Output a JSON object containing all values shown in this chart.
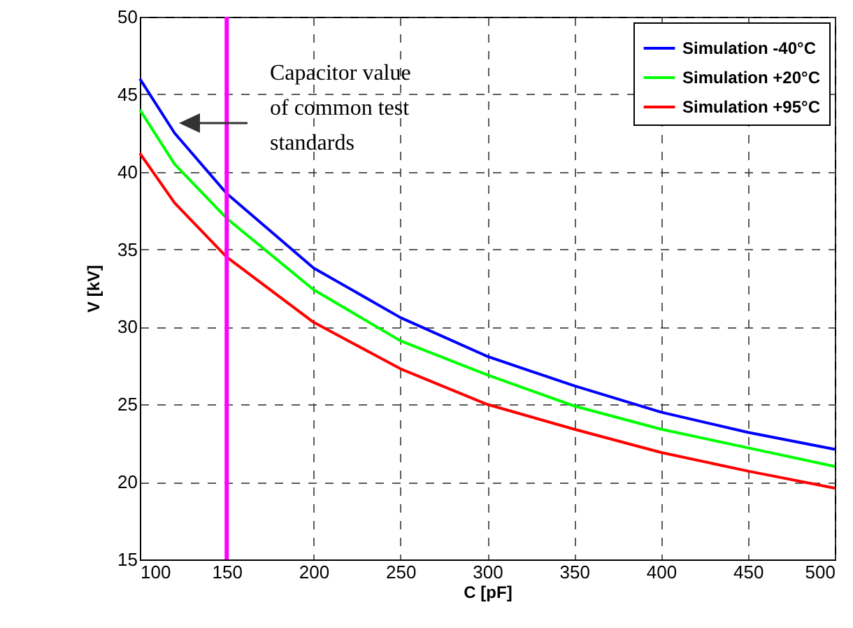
{
  "chart_data": {
    "type": "line",
    "xlabel": "C [pF]",
    "ylabel": "V [kV]",
    "x": [
      100,
      120,
      150,
      200,
      250,
      300,
      350,
      400,
      450,
      500
    ],
    "series": [
      {
        "name": "Simulation -40°C",
        "color": "#0000ff",
        "values": [
          46,
          42.5,
          38.6,
          33.8,
          30.6,
          28.1,
          26.2,
          24.5,
          23.2,
          22.1
        ]
      },
      {
        "name": "Simulation +20°C",
        "color": "#00ff00",
        "values": [
          44,
          40.5,
          37,
          32.4,
          29.1,
          26.9,
          24.9,
          23.4,
          22.2,
          21
        ]
      },
      {
        "name": "Simulation +95°C",
        "color": "#ff0000",
        "values": [
          41.2,
          38,
          34.5,
          30.3,
          27.3,
          25,
          23.4,
          21.9,
          20.7,
          19.6
        ]
      }
    ],
    "xlim": [
      100,
      500
    ],
    "xticks": [
      100,
      150,
      200,
      250,
      300,
      350,
      400,
      450,
      500
    ],
    "ylim": [
      15,
      50
    ],
    "yticks": [
      15,
      20,
      25,
      30,
      35,
      40,
      45,
      50
    ],
    "ref_lines": [
      {
        "axis": "x",
        "value": 150,
        "color": "#ff00ff"
      }
    ],
    "annotations": [
      "Capacitor value of common test standards"
    ],
    "grid": true,
    "legend": "top right",
    "line_style": "solid",
    "marker": "none"
  }
}
